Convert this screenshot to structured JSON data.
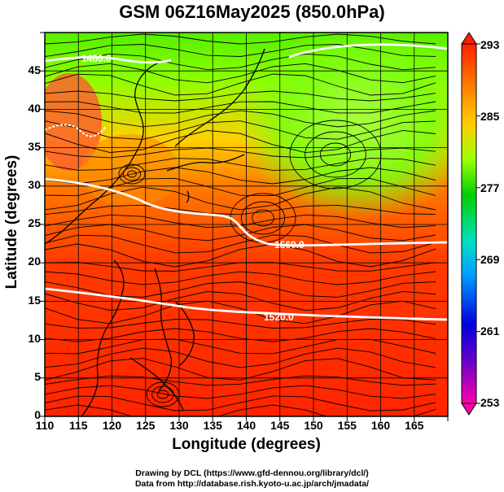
{
  "title": "GSM 06Z16May2025 (850.0hPa)",
  "x_axis": {
    "label": "Longitude (degrees)",
    "range": [
      110,
      170
    ],
    "ticks": [
      "110",
      "115",
      "120",
      "125",
      "130",
      "135",
      "140",
      "145",
      "150",
      "155",
      "160",
      "165"
    ]
  },
  "y_axis": {
    "label": "Latitude  (degrees)",
    "range": [
      0,
      50
    ],
    "ticks": [
      "0",
      "5",
      "10",
      "15",
      "20",
      "25",
      "30",
      "35",
      "40",
      "45"
    ]
  },
  "colorbar": {
    "range": [
      253,
      293
    ],
    "ticks": [
      "253",
      "261",
      "269",
      "277",
      "285",
      "293"
    ],
    "colors": [
      "#ff00aa",
      "#6600cc",
      "#0000dd",
      "#00a0ff",
      "#00e0c0",
      "#00d000",
      "#a0ff00",
      "#ffcc00",
      "#ff8000",
      "#ff2000"
    ]
  },
  "contours": [
    {
      "label": "1560.0"
    },
    {
      "label": "1520.0"
    },
    {
      "label": "1480.0"
    }
  ],
  "credits": {
    "line1": "Drawing by DCL (https://www.gfd-dennou.org/library/dcl/)",
    "line2": "Data from http://database.rish.kyoto-u.ac.jp/arch/jmadata/"
  }
}
